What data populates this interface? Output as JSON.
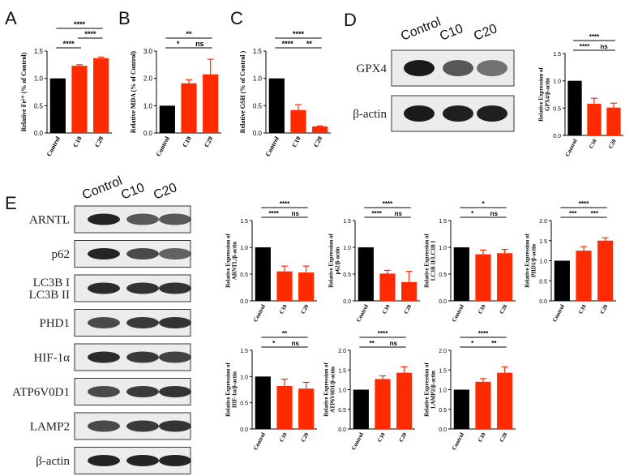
{
  "panel_letters": {
    "a": "A",
    "b": "B",
    "c": "C",
    "d": "D",
    "e": "E"
  },
  "colors": {
    "control": "#000000",
    "treated": "#ff2a00",
    "axis": "#000000",
    "blot_bg": "#ececec",
    "band": "#1b1b1b"
  },
  "blots": {
    "d": {
      "lanes": [
        "Control",
        "C10",
        "C20"
      ],
      "rows": [
        {
          "label": "GPX4",
          "intensity": [
            1.0,
            0.62,
            0.45
          ]
        },
        {
          "label": "β-actin",
          "intensity": [
            1.0,
            0.98,
            0.98
          ]
        }
      ]
    },
    "e": {
      "lanes": [
        "Control",
        "C10",
        "C20"
      ],
      "rows": [
        {
          "label": "ARNTL",
          "intensity": [
            0.95,
            0.6,
            0.6
          ]
        },
        {
          "label": "p62",
          "intensity": [
            0.95,
            0.7,
            0.55
          ]
        },
        {
          "label": "LC3B I\nLC3B II",
          "intensity": [
            0.9,
            0.85,
            0.85
          ]
        },
        {
          "label": "PHD1",
          "intensity": [
            0.7,
            0.8,
            0.85
          ]
        },
        {
          "label": "HIF-1α",
          "intensity": [
            0.9,
            0.8,
            0.75
          ]
        },
        {
          "label": "ATP6V0D1",
          "intensity": [
            0.7,
            0.8,
            0.85
          ]
        },
        {
          "label": "LAMP2",
          "intensity": [
            0.7,
            0.8,
            0.85
          ]
        },
        {
          "label": "β-actin",
          "intensity": [
            0.95,
            0.95,
            0.95
          ]
        }
      ]
    }
  },
  "chart_data": [
    {
      "id": "A",
      "type": "bar",
      "categories": [
        "Control",
        "C10",
        "C20"
      ],
      "values": [
        1.0,
        1.23,
        1.37
      ],
      "errors": [
        0,
        0.02,
        0.02
      ],
      "ylabel": "Relative Fe²⁺ (% of Control)",
      "ylim": [
        0,
        1.5
      ],
      "yticks": [
        "0.0",
        "0.5",
        "1.0",
        "1.5"
      ],
      "sig": [
        {
          "from": 0,
          "to": 1,
          "label": "****",
          "level": 0
        },
        {
          "from": 1,
          "to": 2,
          "label": "****",
          "level": 1
        },
        {
          "from": 0,
          "to": 2,
          "label": "****",
          "level": 2
        }
      ]
    },
    {
      "id": "B",
      "type": "bar",
      "categories": [
        "Control",
        "C10",
        "C20"
      ],
      "values": [
        1.0,
        1.82,
        2.15
      ],
      "errors": [
        0,
        0.13,
        0.55
      ],
      "ylabel": "Relative MDA (% of Control)",
      "ylim": [
        0,
        3.0
      ],
      "yticks": [
        "0.0",
        "1.0",
        "2.0",
        "3.0"
      ],
      "sig": [
        {
          "from": 0,
          "to": 1,
          "label": "*",
          "level": 0
        },
        {
          "from": 1,
          "to": 2,
          "label": "ns",
          "level": 0
        },
        {
          "from": 0,
          "to": 2,
          "label": "**",
          "level": 1
        }
      ]
    },
    {
      "id": "C",
      "type": "bar",
      "categories": [
        "Control",
        "C10",
        "C20"
      ],
      "values": [
        1.0,
        0.42,
        0.12
      ],
      "errors": [
        0,
        0.1,
        0.01
      ],
      "ylabel": "Relative GSH (% of Control )",
      "ylim": [
        0,
        1.5
      ],
      "yticks": [
        "0.0",
        "0.5",
        "1.0",
        "1.5"
      ],
      "sig": [
        {
          "from": 0,
          "to": 1,
          "label": "****",
          "level": 0
        },
        {
          "from": 1,
          "to": 2,
          "label": "**",
          "level": 0
        },
        {
          "from": 0,
          "to": 2,
          "label": "****",
          "level": 1
        }
      ]
    },
    {
      "id": "D",
      "type": "bar",
      "categories": [
        "Control",
        "C10",
        "C20"
      ],
      "values": [
        1.0,
        0.58,
        0.51
      ],
      "errors": [
        0,
        0.1,
        0.08
      ],
      "ylabel": "Relative Expression of GPX4/β-actin",
      "ylim": [
        0,
        1.5
      ],
      "yticks": [
        "0.0",
        "0.5",
        "1.0",
        "1.5"
      ],
      "sig": [
        {
          "from": 0,
          "to": 1,
          "label": "****",
          "level": 0
        },
        {
          "from": 1,
          "to": 2,
          "label": "ns",
          "level": 0
        },
        {
          "from": 0,
          "to": 2,
          "label": "****",
          "level": 1
        }
      ]
    },
    {
      "id": "E1",
      "type": "bar",
      "categories": [
        "Control",
        "C10",
        "C20"
      ],
      "values": [
        1.0,
        0.55,
        0.53
      ],
      "errors": [
        0,
        0.1,
        0.12
      ],
      "ylabel": "Relative Expression of ARNTL/β-actin",
      "ylim": [
        0,
        1.5
      ],
      "yticks": [
        "0.0",
        "0.5",
        "1.0",
        "1.5"
      ],
      "sig": [
        {
          "from": 0,
          "to": 1,
          "label": "****",
          "level": 0
        },
        {
          "from": 1,
          "to": 2,
          "label": "ns",
          "level": 0
        },
        {
          "from": 0,
          "to": 2,
          "label": "****",
          "level": 1
        }
      ]
    },
    {
      "id": "E2",
      "type": "bar",
      "categories": [
        "Control",
        "C10",
        "C20"
      ],
      "values": [
        1.0,
        0.51,
        0.35
      ],
      "errors": [
        0,
        0.06,
        0.2
      ],
      "ylabel": "Relative Expression of p62/β-actin",
      "ylim": [
        0,
        1.5
      ],
      "yticks": [
        "0.0",
        "0.5",
        "1.0",
        "1.5"
      ],
      "sig": [
        {
          "from": 0,
          "to": 1,
          "label": "****",
          "level": 0
        },
        {
          "from": 1,
          "to": 2,
          "label": "ns",
          "level": 0
        },
        {
          "from": 0,
          "to": 2,
          "label": "****",
          "level": 1
        }
      ]
    },
    {
      "id": "E3",
      "type": "bar",
      "categories": [
        "Control",
        "C10",
        "C20"
      ],
      "values": [
        1.0,
        0.87,
        0.89
      ],
      "errors": [
        0,
        0.08,
        0.07
      ],
      "ylabel": "Relative Expression of LC3B II/LC3B I",
      "ylim": [
        0,
        1.5
      ],
      "yticks": [
        "0.0",
        "0.5",
        "1.0",
        "1.5"
      ],
      "sig": [
        {
          "from": 0,
          "to": 1,
          "label": "*",
          "level": 0
        },
        {
          "from": 1,
          "to": 2,
          "label": "ns",
          "level": 0
        },
        {
          "from": 0,
          "to": 2,
          "label": "*",
          "level": 1
        }
      ]
    },
    {
      "id": "E4",
      "type": "bar",
      "categories": [
        "Control",
        "C10",
        "C20"
      ],
      "values": [
        1.0,
        1.25,
        1.5
      ],
      "errors": [
        0,
        0.1,
        0.07
      ],
      "ylabel": "Relative Expression of PHD1/β-actin",
      "ylim": [
        0,
        2.0
      ],
      "yticks": [
        "0.0",
        "0.5",
        "1.0",
        "1.5",
        "2.0"
      ],
      "sig": [
        {
          "from": 0,
          "to": 1,
          "label": "***",
          "level": 0
        },
        {
          "from": 1,
          "to": 2,
          "label": "***",
          "level": 0
        },
        {
          "from": 0,
          "to": 2,
          "label": "****",
          "level": 1
        }
      ]
    },
    {
      "id": "E5",
      "type": "bar",
      "categories": [
        "Control",
        "C10",
        "C20"
      ],
      "values": [
        1.0,
        0.82,
        0.77
      ],
      "errors": [
        0,
        0.13,
        0.12
      ],
      "ylabel": "Relative Expression of HIF-1α/β-actin",
      "ylim": [
        0,
        1.5
      ],
      "yticks": [
        "0.0",
        "0.5",
        "1.0",
        "1.5"
      ],
      "sig": [
        {
          "from": 0,
          "to": 1,
          "label": "*",
          "level": 0
        },
        {
          "from": 1,
          "to": 2,
          "label": "ns",
          "level": 0
        },
        {
          "from": 0,
          "to": 2,
          "label": "**",
          "level": 1
        }
      ]
    },
    {
      "id": "E6",
      "type": "bar",
      "categories": [
        "Control",
        "C10",
        "C20"
      ],
      "values": [
        1.0,
        1.27,
        1.43
      ],
      "errors": [
        0,
        0.08,
        0.15
      ],
      "ylabel": "Relative Expression of ATP6V0D1/β-actin",
      "ylim": [
        0,
        2.0
      ],
      "yticks": [
        "0.0",
        "0.5",
        "1.0",
        "1.5",
        "2.0"
      ],
      "sig": [
        {
          "from": 0,
          "to": 1,
          "label": "**",
          "level": 0
        },
        {
          "from": 1,
          "to": 2,
          "label": "ns",
          "level": 0
        },
        {
          "from": 0,
          "to": 2,
          "label": "****",
          "level": 1
        }
      ]
    },
    {
      "id": "E7",
      "type": "bar",
      "categories": [
        "Control",
        "C10",
        "C20"
      ],
      "values": [
        1.0,
        1.2,
        1.43
      ],
      "errors": [
        0,
        0.08,
        0.15
      ],
      "ylabel": "Relative Expression of LAMP2/β-actin",
      "ylim": [
        0,
        2.0
      ],
      "yticks": [
        "0.0",
        "0.5",
        "1.0",
        "1.5",
        "2.0"
      ],
      "sig": [
        {
          "from": 0,
          "to": 1,
          "label": "*",
          "level": 0
        },
        {
          "from": 1,
          "to": 2,
          "label": "**",
          "level": 0
        },
        {
          "from": 0,
          "to": 2,
          "label": "****",
          "level": 1
        }
      ]
    }
  ]
}
